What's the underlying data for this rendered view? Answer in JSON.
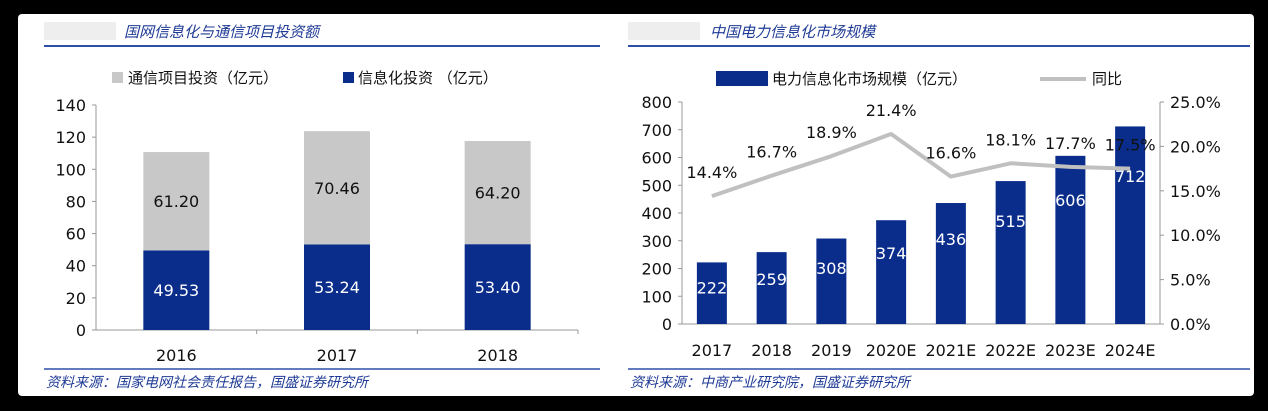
{
  "left_panel": {
    "title": "国网信息化与通信项目投资额",
    "source": "资料来源：国家电网社会责任报告，国盛证券研究所"
  },
  "right_panel": {
    "title": "中国电力信息化市场规模",
    "source": "资料来源：中商产业研究院，国盛证券研究所"
  },
  "colors": {
    "navy": "#0a2d8c",
    "gray": "#c8c8c8",
    "line_gray": "#c0c0c0",
    "title_blue": "#1f3b95",
    "rule_blue": "#2e4fa8"
  },
  "chart_data": [
    {
      "type": "bar",
      "stacked": true,
      "categories": [
        "2016",
        "2017",
        "2018"
      ],
      "series": [
        {
          "name": "信息化投资 （亿元）",
          "values": [
            49.53,
            53.24,
            53.4
          ],
          "labels": [
            "49.53",
            "53.24",
            "53.40"
          ],
          "color": "#0a2d8c"
        },
        {
          "name": "通信项目投资（亿元）",
          "values": [
            61.2,
            70.46,
            64.2
          ],
          "labels": [
            "61.20",
            "70.46",
            "64.20"
          ],
          "color": "#c8c8c8"
        }
      ],
      "legend_order": [
        "通信项目投资（亿元）",
        "信息化投资 （亿元）"
      ],
      "ylim": [
        0,
        140
      ],
      "yticks": [
        "0",
        "20",
        "40",
        "60",
        "80",
        "100",
        "120",
        "140"
      ],
      "legend_position": "top"
    },
    {
      "type": "bar",
      "categories": [
        "2017",
        "2018",
        "2019",
        "2020E",
        "2021E",
        "2022E",
        "2023E",
        "2024E"
      ],
      "series": [
        {
          "name": "电力信息化市场规模（亿元）",
          "type": "bar",
          "axis": "left",
          "values": [
            222,
            259,
            308,
            374,
            436,
            515,
            606,
            712
          ],
          "labels": [
            "222",
            "259",
            "308",
            "374",
            "436",
            "515",
            "606",
            "712"
          ],
          "color": "#0a2d8c"
        },
        {
          "name": "同比",
          "type": "line",
          "axis": "right",
          "values": [
            14.4,
            16.7,
            18.9,
            21.4,
            16.6,
            18.1,
            17.7,
            17.5
          ],
          "labels": [
            "14.4%",
            "16.7%",
            "18.9%",
            "21.4%",
            "16.6%",
            "18.1%",
            "17.7%",
            "17.5%"
          ],
          "color": "#c0c0c0"
        }
      ],
      "ylim": [
        0,
        800
      ],
      "yticks": [
        "0",
        "100",
        "200",
        "300",
        "400",
        "500",
        "600",
        "700",
        "800"
      ],
      "y2lim": [
        0,
        25
      ],
      "y2ticks": [
        "0.0%",
        "5.0%",
        "10.0%",
        "15.0%",
        "20.0%",
        "25.0%"
      ],
      "legend_position": "top"
    }
  ]
}
